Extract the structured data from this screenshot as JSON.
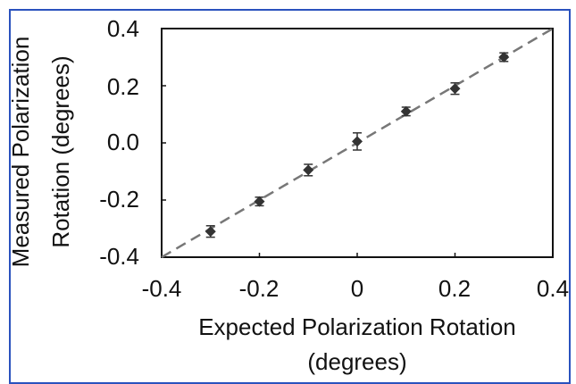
{
  "chart_data": {
    "type": "scatter",
    "xlabel_lines": [
      "Expected Polarization Rotation",
      "(degrees)"
    ],
    "ylabel_lines": [
      "Measured Polarization",
      "Rotation (degrees)"
    ],
    "xlim": [
      -0.4,
      0.4
    ],
    "ylim": [
      -0.4,
      0.4
    ],
    "x_ticks": [
      "-0.4",
      "-0.2",
      "0",
      "0.2",
      "0.4"
    ],
    "y_ticks": [
      "0.4",
      "0.2",
      "0.0",
      "-0.2",
      "-0.4"
    ],
    "grid": false,
    "points": [
      {
        "x": -0.3,
        "y": -0.31,
        "err": 0.02
      },
      {
        "x": -0.2,
        "y": -0.205,
        "err": 0.015
      },
      {
        "x": -0.1,
        "y": -0.095,
        "err": 0.02
      },
      {
        "x": 0.0,
        "y": 0.005,
        "err": 0.03
      },
      {
        "x": 0.1,
        "y": 0.11,
        "err": 0.015
      },
      {
        "x": 0.2,
        "y": 0.19,
        "err": 0.02
      },
      {
        "x": 0.3,
        "y": 0.3,
        "err": 0.015
      }
    ],
    "reference_line": {
      "style": "dashed",
      "from": [
        -0.4,
        -0.4
      ],
      "to": [
        0.4,
        0.4
      ]
    },
    "colors": {
      "marker": "#333333",
      "reference_line": "#777777",
      "frame": "#2a52be"
    }
  }
}
